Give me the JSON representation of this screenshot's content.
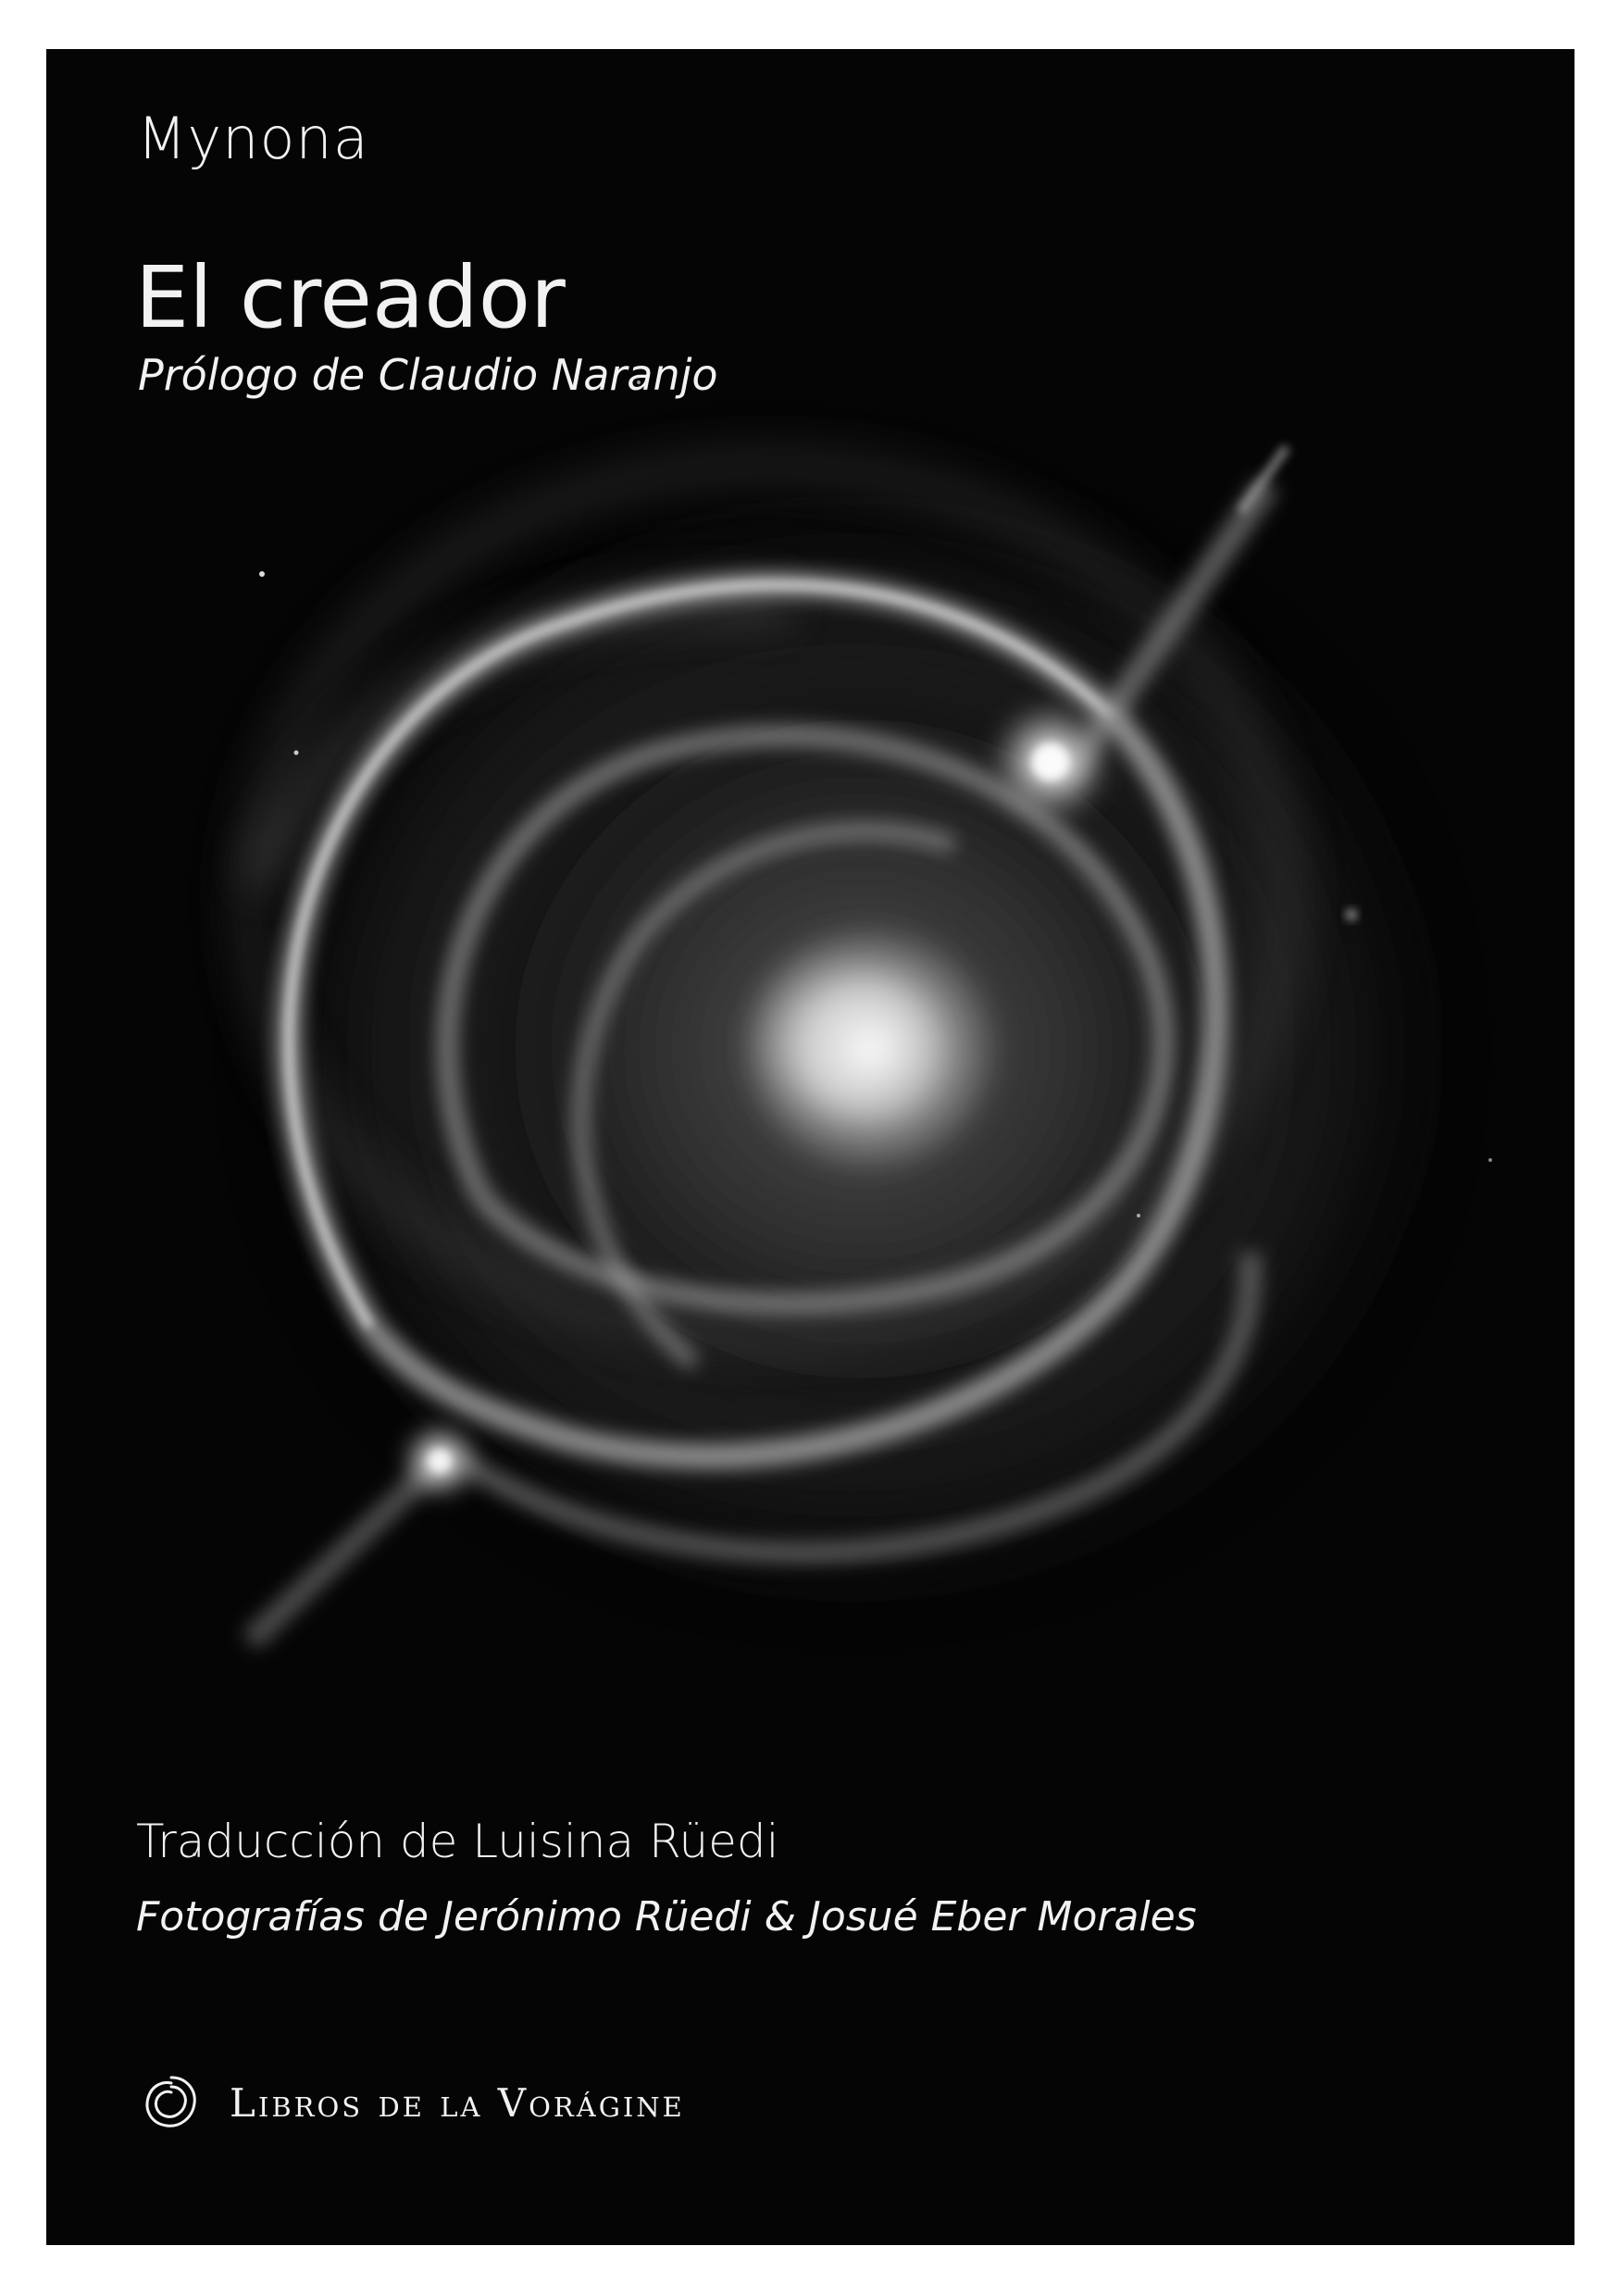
{
  "cover": {
    "author": "Mynona",
    "title": "El creador",
    "prologue": "Prólogo de Claudio Naranjo",
    "translation": "Traducción de Luisina Rüedi",
    "photos": "Fotografías de Jerónimo Rüedi & Josué Eber Morales",
    "publisher": "Libros de la Vorágine"
  },
  "colors": {
    "background": "#050505",
    "text": "#f2f2f2",
    "page": "#ffffff"
  },
  "icons": {
    "publisher_logo": "spiral-logo-icon",
    "cover_image": "nebula-photo"
  }
}
